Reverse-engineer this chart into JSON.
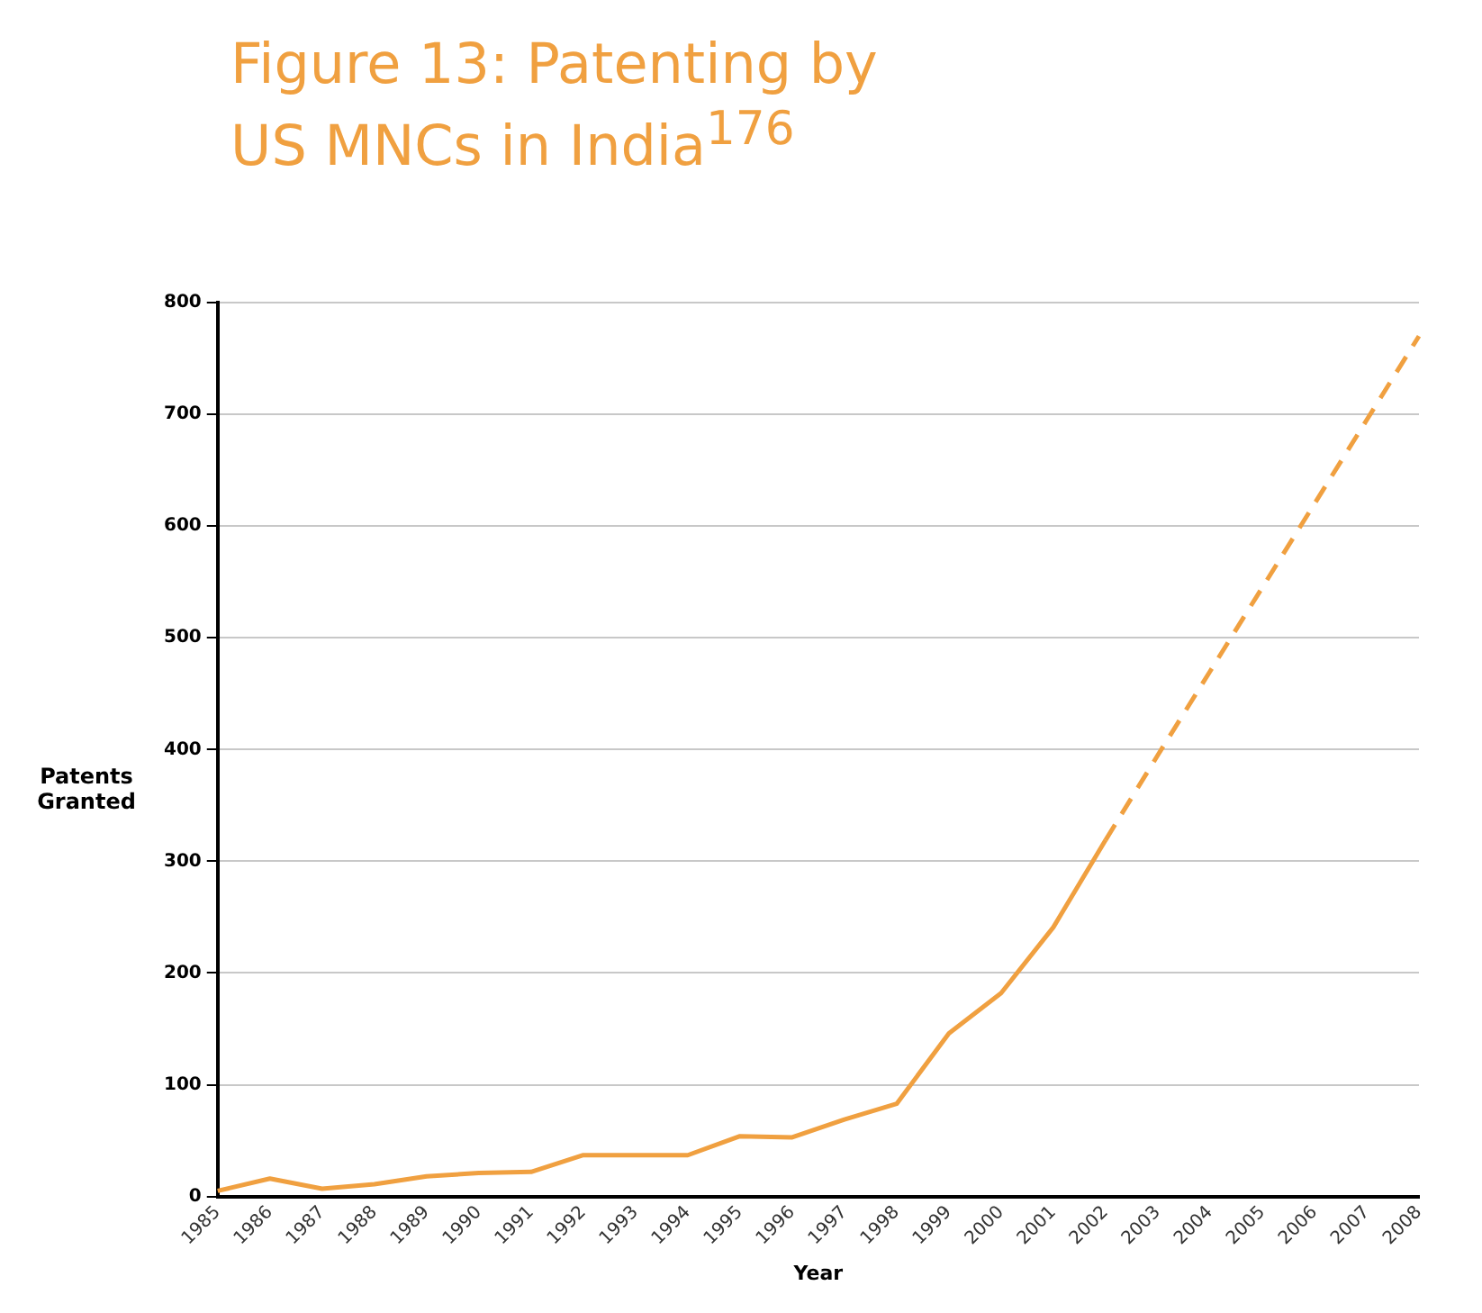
{
  "chart_data": {
    "type": "line",
    "title": "Figure 13: Patenting by US MNCs in India$^{176}$",
    "xlabel": "Year",
    "ylabel": "Patents Granted",
    "categories": [
      "1985",
      "1986",
      "1987",
      "1988",
      "1989",
      "1990",
      "1991",
      "1992",
      "1993",
      "1994",
      "1995",
      "1996",
      "1997",
      "1998",
      "1999",
      "2000",
      "2001",
      "2002",
      "2003",
      "2004",
      "2005",
      "2006",
      "2007",
      "2008"
    ],
    "series": [
      {
        "color": "#f0a040",
        "line_style": "solid",
        "values": [
          5,
          16,
          7,
          11,
          18,
          21,
          22,
          37,
          37,
          37,
          54,
          53,
          69,
          83,
          146,
          182,
          241,
          319,
          null,
          null,
          null,
          null,
          null,
          null
        ]
      },
      {
        "color": "#f0a040",
        "line_style": "dashed",
        "values": [
          null,
          null,
          null,
          null,
          null,
          null,
          null,
          null,
          null,
          null,
          null,
          null,
          null,
          null,
          null,
          null,
          null,
          319,
          395,
          470,
          545,
          620,
          695,
          770
        ]
      }
    ],
    "ylim": [
      0,
      800
    ],
    "yticks": [
      0,
      100,
      200,
      300,
      400,
      500,
      600,
      700,
      800
    ],
    "grid": "y",
    "legend": false,
    "marker": "none"
  }
}
